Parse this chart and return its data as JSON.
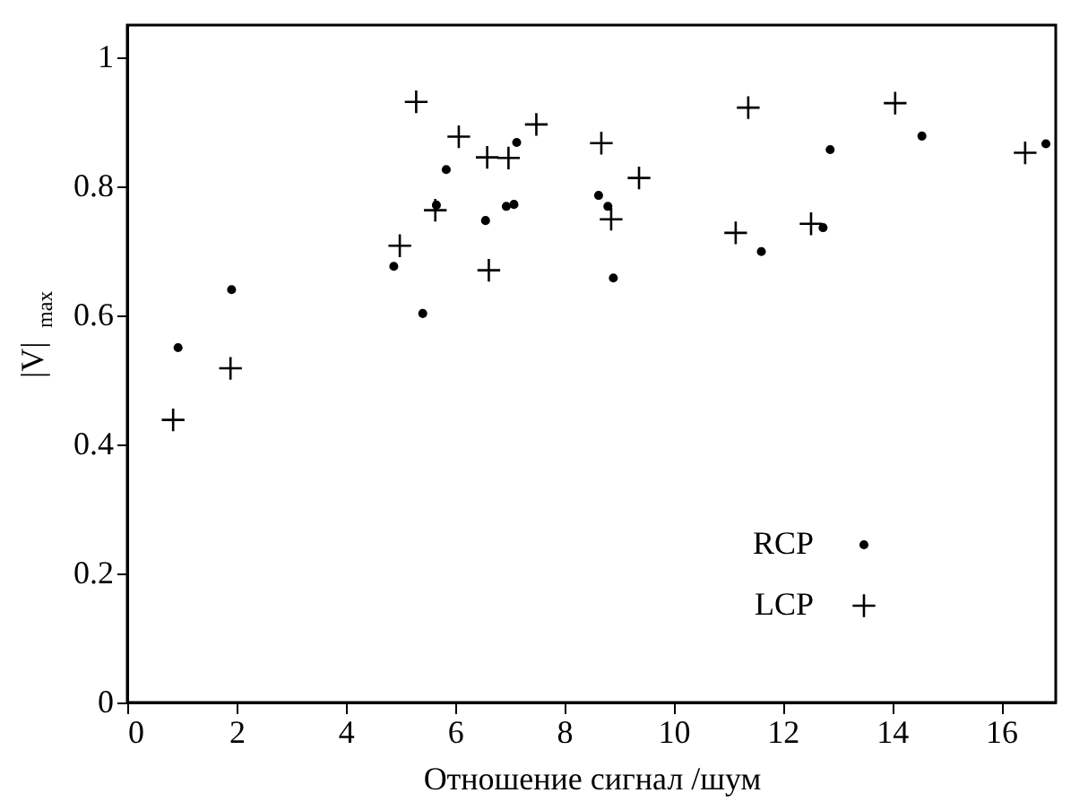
{
  "chart_data": {
    "type": "scatter",
    "xlabel": "Отношение   сигнал /шум",
    "ylabel": "|V|$_{max}$",
    "xlim": [
      0,
      17
    ],
    "ylim": [
      0,
      1.05
    ],
    "xticks": [
      0,
      2,
      4,
      6,
      8,
      10,
      12,
      14,
      16
    ],
    "yticks": [
      0,
      0.2,
      0.4,
      0.6,
      0.8,
      1
    ],
    "grid": false,
    "legend": "bottom right",
    "series": [
      {
        "name": "RCP",
        "color": "#000000",
        "marker": "circle",
        "x": [
          0.93,
          1.91,
          4.88,
          5.41,
          5.66,
          5.84,
          6.56,
          6.94,
          7.08,
          7.13,
          8.63,
          8.8,
          8.9,
          11.61,
          12.74,
          12.87,
          14.55,
          16.82
        ],
        "values": [
          0.55,
          0.64,
          0.676,
          0.603,
          0.771,
          0.826,
          0.747,
          0.769,
          0.772,
          0.868,
          0.786,
          0.769,
          0.658,
          0.699,
          0.736,
          0.857,
          0.878,
          0.866
        ]
      },
      {
        "name": "LCP",
        "color": "#000000",
        "marker": "cross",
        "x": [
          0.84,
          1.89,
          4.99,
          5.29,
          5.64,
          6.07,
          6.59,
          6.62,
          6.98,
          7.49,
          8.68,
          8.86,
          9.37,
          11.14,
          11.37,
          12.52,
          14.06,
          16.44
        ],
        "values": [
          0.438,
          0.518,
          0.708,
          0.931,
          0.763,
          0.877,
          0.845,
          0.67,
          0.844,
          0.896,
          0.867,
          0.749,
          0.813,
          0.728,
          0.922,
          0.742,
          0.929,
          0.852
        ]
      }
    ]
  }
}
